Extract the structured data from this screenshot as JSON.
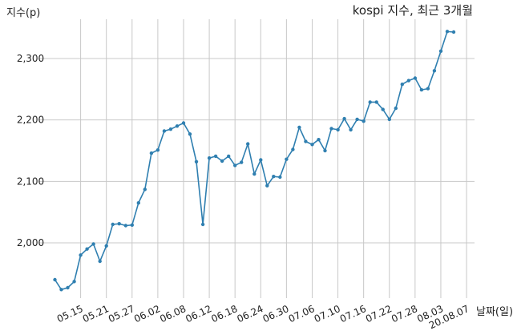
{
  "chart_data": {
    "type": "line",
    "title": "kospi 지수, 최근 3개월",
    "xlabel": "날짜(일)",
    "ylabel": "지수(p)",
    "ylim": [
      1905,
      2380
    ],
    "yticks": [
      2000,
      2100,
      2200,
      2300
    ],
    "ytick_labels": [
      "2,000",
      "2,100",
      "2,200",
      "2,300"
    ],
    "grid": true,
    "xtick_labels": [
      "05.15",
      "05.21",
      "05.27",
      "06.02",
      "06.08",
      "06.12",
      "06.18",
      "06.24",
      "06.30",
      "07.06",
      "07.10",
      "07.16",
      "07.22",
      "07.28",
      "08.03",
      "20.08.07"
    ],
    "xtick_index": [
      4,
      8,
      12,
      16,
      20,
      24,
      28,
      32,
      36,
      40,
      44,
      48,
      52,
      56,
      60,
      64
    ],
    "series": [
      {
        "values": [
          1940,
          1924,
          1927,
          1937,
          1980,
          1990,
          1998,
          1970,
          1995,
          2030,
          2031,
          2028,
          2029,
          2065,
          2087,
          2146,
          2151,
          2182,
          2185,
          2190,
          2195,
          2177,
          2132,
          2030,
          2138,
          2141,
          2133,
          2141,
          2126,
          2131,
          2161,
          2112,
          2135,
          2093,
          2108,
          2107,
          2136,
          2152,
          2188,
          2165,
          2160,
          2168,
          2150,
          2186,
          2184,
          2202,
          2184,
          2201,
          2198,
          2229,
          2229,
          2217,
          2201,
          2219,
          2258,
          2264,
          2268,
          2249,
          2251,
          2280,
          2312,
          2344,
          2343
        ]
      }
    ]
  }
}
